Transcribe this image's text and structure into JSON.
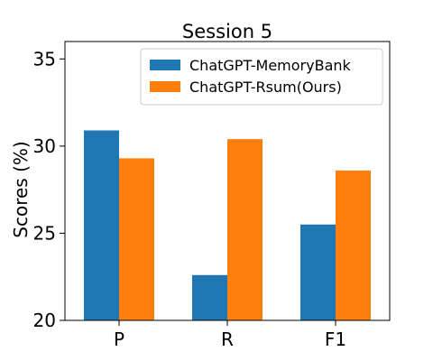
{
  "chart_data": {
    "type": "bar",
    "title": "Session 5",
    "xlabel": "",
    "ylabel": "Scores (%)",
    "categories": [
      "P",
      "R",
      "F1"
    ],
    "series": [
      {
        "name": "ChatGPT-MemoryBank",
        "values": [
          30.9,
          22.6,
          25.5
        ],
        "color": "#1f77b4"
      },
      {
        "name": "ChatGPT-Rsum(Ours)",
        "values": [
          29.3,
          30.4,
          28.6
        ],
        "color": "#ff7f0e"
      }
    ],
    "ylim": [
      20,
      36
    ],
    "yticks": [
      20,
      25,
      30,
      35
    ],
    "grid": false,
    "legend_position": "top-right"
  }
}
